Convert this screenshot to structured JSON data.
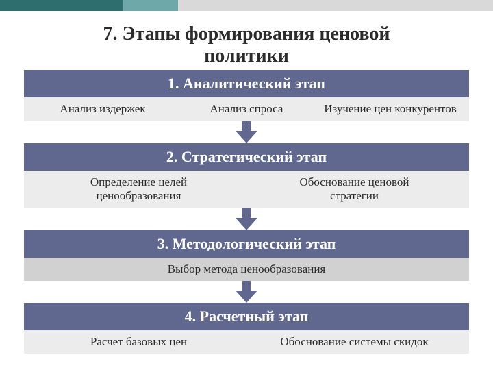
{
  "slide": {
    "title": "7. Этапы формирования ценовой\nполитики"
  },
  "colors": {
    "header_bg": "#60688f",
    "body_bg_light": "#ececec",
    "body_bg_grey": "#d1d1d1",
    "arrow_fill": "#60688f",
    "text_dark": "#2b2b2b",
    "text_light": "#ffffff"
  },
  "stages": [
    {
      "header": "1. Аналитический этап",
      "body_bg": "#ececec",
      "items": [
        "Анализ издержек",
        "Анализ спроса",
        "Изучение цен конкурентов"
      ]
    },
    {
      "header": "2. Стратегический этап",
      "body_bg": "#ececec",
      "items": [
        "Определение целей\nценообразования",
        "Обоснование ценовой\nстратегии"
      ]
    },
    {
      "header": "3. Методологический этап",
      "body_bg": "#d1d1d1",
      "items": [
        "Выбор метода ценообразования"
      ]
    },
    {
      "header": "4. Расчетный этап",
      "body_bg": "#ececec",
      "items": [
        "Расчет базовых цен",
        "Обоснование системы скидок"
      ]
    }
  ]
}
